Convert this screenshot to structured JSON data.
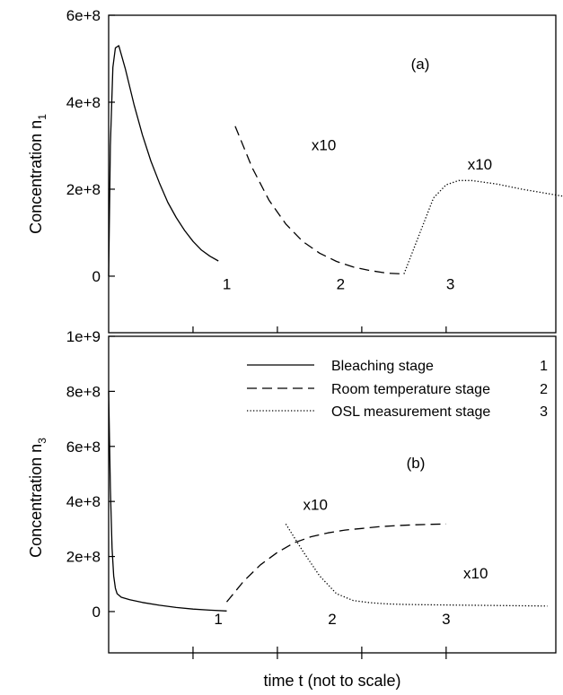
{
  "figure": {
    "xlabel": "time t (not to scale)",
    "legend": {
      "placement": "top-right of panel b",
      "entries": [
        {
          "label": "Bleaching stage",
          "number": "1",
          "style": "solid"
        },
        {
          "label": "Room temperature stage",
          "number": "2",
          "style": "dashed"
        },
        {
          "label": "OSL measurement stage",
          "number": "3",
          "style": "dotted"
        }
      ]
    }
  },
  "chart_data": [
    {
      "type": "line",
      "panel_label": "(a)",
      "ylabel_main": "Concentration n",
      "ylabel_sub": "1",
      "ylim": [
        -130000000.0,
        600000000.0
      ],
      "yticks": [
        {
          "value": 0,
          "label": "0"
        },
        {
          "value": 200000000.0,
          "label": "2e+8"
        },
        {
          "value": 400000000.0,
          "label": "4e+8"
        },
        {
          "value": 600000000.0,
          "label": "6e+8"
        }
      ],
      "x_ticks": [
        1,
        2,
        3,
        4
      ],
      "xlim": [
        0,
        5.3
      ],
      "stage_labels": [
        {
          "text": "1",
          "x": 1.4,
          "y": -30000000.0
        },
        {
          "text": "2",
          "x": 2.75,
          "y": -30000000.0
        },
        {
          "text": "3",
          "x": 4.05,
          "y": -30000000.0
        }
      ],
      "annotations": [
        {
          "text": "x10",
          "x": 2.55,
          "y": 290000000.0
        },
        {
          "text": "x10",
          "x": 4.4,
          "y": 245000000.0
        }
      ],
      "series": [
        {
          "style": "solid",
          "x": [
            0.0,
            0.02,
            0.05,
            0.08,
            0.12,
            0.2,
            0.3,
            0.4,
            0.5,
            0.6,
            0.7,
            0.8,
            0.9,
            1.0,
            1.1,
            1.2,
            1.3
          ],
          "y": [
            0,
            300000000.0,
            480000000.0,
            525000000.0,
            530000000.0,
            475000000.0,
            395000000.0,
            325000000.0,
            265000000.0,
            215000000.0,
            170000000.0,
            135000000.0,
            105000000.0,
            80000000.0,
            60000000.0,
            46000000.0,
            35000000.0
          ]
        },
        {
          "style": "dashed",
          "x": [
            1.5,
            1.7,
            1.9,
            2.1,
            2.3,
            2.5,
            2.7,
            2.9,
            3.1,
            3.3,
            3.5
          ],
          "y": [
            345000000.0,
            250000000.0,
            175000000.0,
            120000000.0,
            80000000.0,
            53000000.0,
            34000000.0,
            21000000.0,
            13000000.0,
            7000000.0,
            5000000.0
          ]
        },
        {
          "style": "dotted",
          "x": [
            3.5,
            3.7,
            3.85,
            4.0,
            4.15,
            4.3,
            4.6,
            4.9,
            5.2,
            5.5,
            5.8
          ],
          "y": [
            5000000.0,
            105000000.0,
            180000000.0,
            210000000.0,
            220000000.0,
            220000000.0,
            212000000.0,
            200000000.0,
            190000000.0,
            180000000.0,
            170000000.0
          ]
        }
      ]
    },
    {
      "type": "line",
      "panel_label": "(b)",
      "ylabel_main": "Concentration n",
      "ylabel_sub": "3",
      "ylim": [
        -150000000.0,
        1000000000.0
      ],
      "yticks": [
        {
          "value": 0,
          "label": "0"
        },
        {
          "value": 200000000.0,
          "label": "2e+8"
        },
        {
          "value": 400000000.0,
          "label": "4e+8"
        },
        {
          "value": 600000000.0,
          "label": "6e+8"
        },
        {
          "value": 800000000.0,
          "label": "8e+8"
        },
        {
          "value": 1000000000.0,
          "label": "1e+9"
        }
      ],
      "x_ticks": [
        1,
        2,
        3,
        4
      ],
      "xlim": [
        0,
        5.3
      ],
      "stage_labels": [
        {
          "text": "1",
          "x": 1.3,
          "y": -45000000.0
        },
        {
          "text": "2",
          "x": 2.65,
          "y": -45000000.0
        },
        {
          "text": "3",
          "x": 4.0,
          "y": -45000000.0
        }
      ],
      "annotations": [
        {
          "text": "x10",
          "x": 2.45,
          "y": 370000000.0
        },
        {
          "text": "x10",
          "x": 4.35,
          "y": 120000000.0
        }
      ],
      "series": [
        {
          "style": "solid",
          "x": [
            0.0,
            0.02,
            0.04,
            0.06,
            0.08,
            0.1,
            0.15,
            0.25,
            0.4,
            0.6,
            0.8,
            1.0,
            1.2,
            1.4
          ],
          "y": [
            800000000.0,
            450000000.0,
            230000000.0,
            130000000.0,
            85000000.0,
            65000000.0,
            52000000.0,
            43000000.0,
            33000000.0,
            23000000.0,
            15000000.0,
            9000000.0,
            5000000.0,
            2000000.0
          ]
        },
        {
          "style": "dashed",
          "x": [
            1.4,
            1.6,
            1.8,
            2.0,
            2.2,
            2.4,
            2.6,
            2.8,
            3.0,
            3.2,
            3.4,
            3.6,
            3.8,
            4.0
          ],
          "y": [
            35000000.0,
            110000000.0,
            170000000.0,
            215000000.0,
            250000000.0,
            272000000.0,
            286000000.0,
            296000000.0,
            302000000.0,
            308000000.0,
            312000000.0,
            315000000.0,
            317000000.0,
            318000000.0
          ]
        },
        {
          "style": "dotted",
          "x": [
            2.1,
            2.3,
            2.5,
            2.7,
            2.9,
            3.1,
            3.3,
            3.5,
            3.7,
            4.0,
            4.3,
            4.6,
            4.9,
            5.2
          ],
          "y": [
            318000000.0,
            220000000.0,
            130000000.0,
            65000000.0,
            40000000.0,
            32000000.0,
            28000000.0,
            26000000.0,
            25000000.0,
            24000000.0,
            23000000.0,
            22000000.0,
            21000000.0,
            20000000.0
          ]
        }
      ]
    }
  ]
}
